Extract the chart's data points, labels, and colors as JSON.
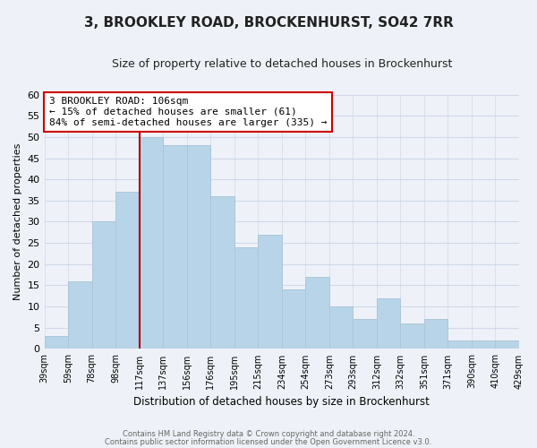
{
  "title": "3, BROOKLEY ROAD, BROCKENHURST, SO42 7RR",
  "subtitle": "Size of property relative to detached houses in Brockenhurst",
  "xlabel": "Distribution of detached houses by size in Brockenhurst",
  "ylabel": "Number of detached properties",
  "footer_lines": [
    "Contains HM Land Registry data © Crown copyright and database right 2024.",
    "Contains public sector information licensed under the Open Government Licence v3.0."
  ],
  "bins": [
    "39sqm",
    "59sqm",
    "78sqm",
    "98sqm",
    "117sqm",
    "137sqm",
    "156sqm",
    "176sqm",
    "195sqm",
    "215sqm",
    "234sqm",
    "254sqm",
    "273sqm",
    "293sqm",
    "312sqm",
    "332sqm",
    "351sqm",
    "371sqm",
    "390sqm",
    "410sqm",
    "429sqm"
  ],
  "values": [
    3,
    16,
    30,
    37,
    50,
    48,
    48,
    36,
    24,
    27,
    14,
    17,
    10,
    7,
    12,
    6,
    7,
    2,
    2,
    2
  ],
  "bar_color": "#b8d4e8",
  "bar_edge_color": "#aec6d8",
  "grid_color": "#d0d8e8",
  "background_color": "#eef2f8",
  "vline_color": "#aa0000",
  "annotation_text_line1": "3 BROOKLEY ROAD: 106sqm",
  "annotation_text_line2": "← 15% of detached houses are smaller (61)",
  "annotation_text_line3": "84% of semi-detached houses are larger (335) →",
  "annotation_box_edgecolor": "#cc0000",
  "annotation_box_facecolor": "#ffffff",
  "ylim": [
    0,
    60
  ],
  "yticks": [
    0,
    5,
    10,
    15,
    20,
    25,
    30,
    35,
    40,
    45,
    50,
    55,
    60
  ]
}
